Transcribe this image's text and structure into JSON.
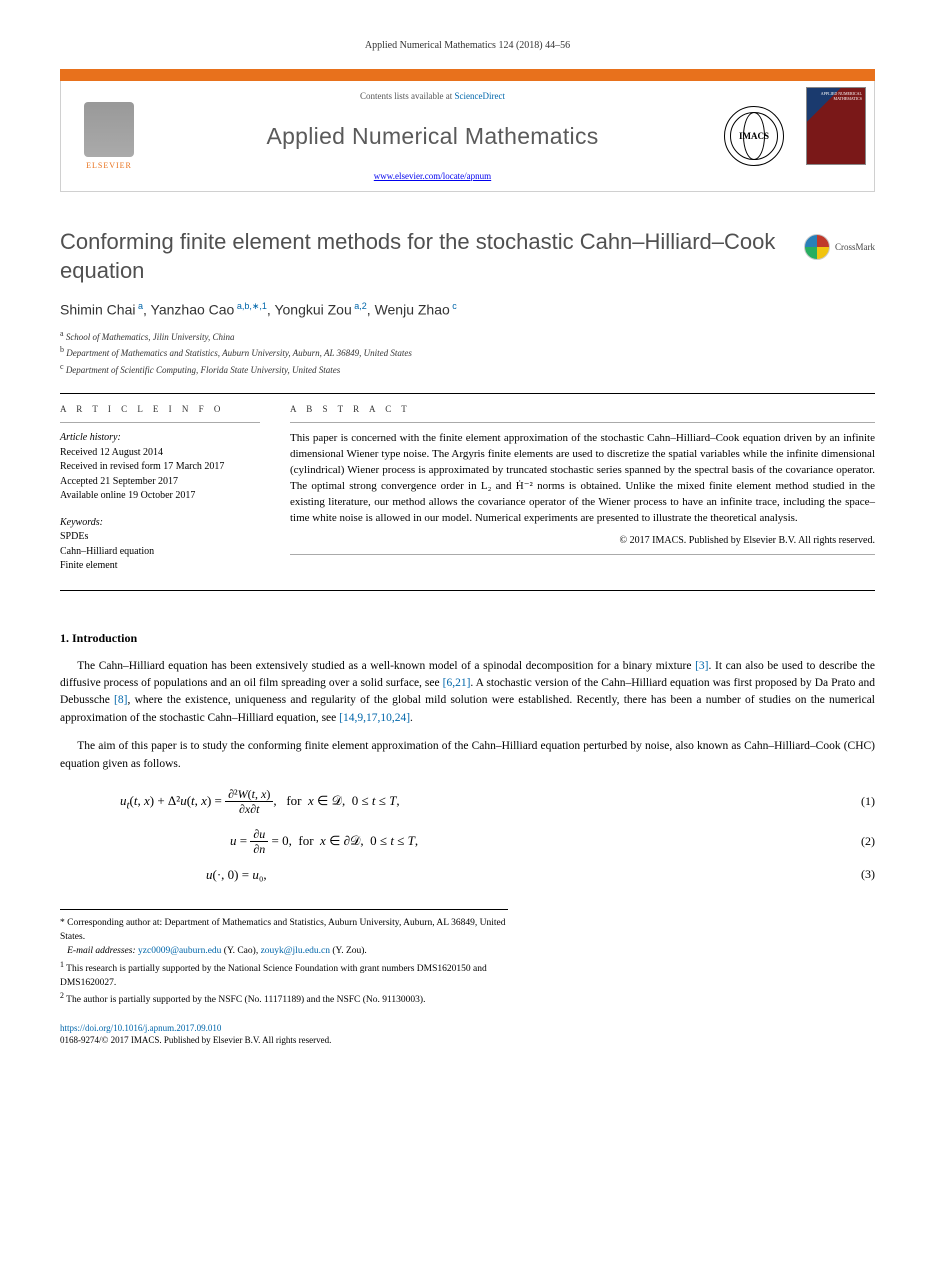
{
  "journal_ref": "Applied Numerical Mathematics 124 (2018) 44–56",
  "header": {
    "contents_prefix": "Contents lists available at ",
    "contents_link": "ScienceDirect",
    "journal_name": "Applied Numerical Mathematics",
    "journal_url": "www.elsevier.com/locate/apnum",
    "elsevier": "ELSEVIER",
    "imacs": "IMACS",
    "cover_label": "APPLIED NUMERICAL MATHEMATICS"
  },
  "colors": {
    "orange": "#e8711c",
    "link": "#0066aa",
    "title_gray": "#505050",
    "text": "#000000"
  },
  "title": "Conforming finite element methods for the stochastic Cahn–Hilliard–Cook equation",
  "crossmark": "CrossMark",
  "authors_html": "Shimin Chai|a|, Yanzhao Cao|a,b,*,1|, Yongkui Zou|a,2|, Wenju Zhao|c",
  "authors": [
    {
      "name": "Shimin Chai",
      "sup": "a"
    },
    {
      "name": "Yanzhao Cao",
      "sup": "a,b,∗,1"
    },
    {
      "name": "Yongkui Zou",
      "sup": "a,2"
    },
    {
      "name": "Wenju Zhao",
      "sup": "c"
    }
  ],
  "affiliations": [
    {
      "sup": "a",
      "text": "School of Mathematics, Jilin University, China"
    },
    {
      "sup": "b",
      "text": "Department of Mathematics and Statistics, Auburn University, Auburn, AL 36849, United States"
    },
    {
      "sup": "c",
      "text": "Department of Scientific Computing, Florida State University, United States"
    }
  ],
  "article_info": {
    "head": "A R T I C L E   I N F O",
    "history_label": "Article history:",
    "history": [
      "Received 12 August 2014",
      "Received in revised form 17 March 2017",
      "Accepted 21 September 2017",
      "Available online 19 October 2017"
    ],
    "keywords_label": "Keywords:",
    "keywords": [
      "SPDEs",
      "Cahn–Hilliard equation",
      "Finite element"
    ]
  },
  "abstract": {
    "head": "A B S T R A C T",
    "text": "This paper is concerned with the finite element approximation of the stochastic Cahn–Hilliard–Cook equation driven by an infinite dimensional Wiener type noise. The Argyris finite elements are used to discretize the spatial variables while the infinite dimensional (cylindrical) Wiener process is approximated by truncated stochastic series spanned by the spectral basis of the covariance operator. The optimal strong convergence order in L₂ and Ḣ⁻² norms is obtained. Unlike the mixed finite element method studied in the existing literature, our method allows the covariance operator of the Wiener process to have an infinite trace, including the space–time white noise is allowed in our model. Numerical experiments are presented to illustrate the theoretical analysis.",
    "copyright": "© 2017 IMACS. Published by Elsevier B.V. All rights reserved."
  },
  "section1": {
    "title": "1. Introduction",
    "para1_pre": "The Cahn–Hilliard equation has been extensively studied as a well-known model of a spinodal decomposition for a binary mixture ",
    "ref1": "[3]",
    "para1_mid": ". It can also be used to describe the diffusive process of populations and an oil film spreading over a solid surface, see ",
    "ref2": "[6,21]",
    "para1_mid2": ". A stochastic version of the Cahn–Hilliard equation was first proposed by Da Prato and Debussche ",
    "ref3": "[8]",
    "para1_mid3": ", where the existence, uniqueness and regularity of the global mild solution were established. Recently, there has been a number of studies on the numerical approximation of the stochastic Cahn–Hilliard equation, see ",
    "ref4": "[14,9,17,10,24]",
    "para1_end": ".",
    "para2": "The aim of this paper is to study the conforming finite element approximation of the Cahn–Hilliard equation perturbed by noise, also known as Cahn–Hilliard–Cook (CHC) equation given as follows."
  },
  "equations": [
    {
      "content": "uₜ(t, x) + Δ²u(t, x) = ∂²W(t,x)/∂x∂t,   for  x ∈ 𝒟,   0 ≤ t ≤ T,",
      "num": "(1)",
      "has_frac": true
    },
    {
      "content": "u = ∂u/∂n = 0,   for  x ∈ ∂𝒟,   0 ≤ t ≤ T,",
      "num": "(2)",
      "has_frac": true
    },
    {
      "content": "u(·, 0) = u₀,",
      "num": "(3)",
      "has_frac": false
    }
  ],
  "footnotes": {
    "corr": "Corresponding author at: Department of Mathematics and Statistics, Auburn University, Auburn, AL 36849, United States.",
    "email_label": "E-mail addresses: ",
    "emails": [
      {
        "addr": "yzc0009@auburn.edu",
        "who": " (Y. Cao), "
      },
      {
        "addr": "zouyk@jlu.edu.cn",
        "who": " (Y. Zou)."
      }
    ],
    "note1": "This research is partially supported by the National Science Foundation with grant numbers DMS1620150 and DMS1620027.",
    "note2": "The author is partially supported by the NSFC (No. 11171189) and the NSFC (No. 91130003)."
  },
  "footer": {
    "doi": "https://doi.org/10.1016/j.apnum.2017.09.010",
    "issn": "0168-9274/© 2017 IMACS. Published by Elsevier B.V. All rights reserved."
  }
}
